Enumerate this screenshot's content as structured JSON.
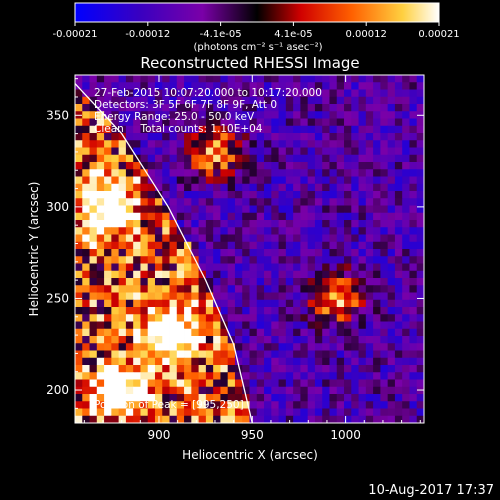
{
  "chart_data": {
    "type": "heatmap",
    "title": "Reconstructed RHESSI Image",
    "xlabel": "Heliocentric X (arcsec)",
    "ylabel": "Heliocentric Y (arcsec)",
    "xlim": [
      855,
      1042
    ],
    "ylim": [
      182,
      372
    ],
    "xticks": [
      900,
      950,
      1000
    ],
    "yticks": [
      200,
      250,
      300,
      350
    ],
    "colorbar": {
      "ticks": [
        "-0.00021",
        "-0.00012",
        "-4.1e-05",
        "4.1e-05",
        "0.00012",
        "0.00021"
      ],
      "unit_label": "(photons cm⁻² s⁻¹ asec⁻²)",
      "range": [
        -0.00021,
        0.00021
      ],
      "colors": [
        "#0000ff",
        "#5000a0",
        "#8000a0",
        "#000000",
        "#ff0000",
        "#ff8000",
        "#ffff80",
        "#ffffff"
      ]
    },
    "annotations": [
      "27-Feb-2015 10:07:20.000 to 10:17:20.000",
      "Detectors: 3F 5F 6F 7F 8F 9F, Att 0",
      "Energy Range: 25.0 - 50.0 keV",
      "Clean     Total counts: 1.10E+04"
    ],
    "peak_label": "Position of Peak = [995,250]",
    "peak": {
      "x": 995,
      "y": 250
    },
    "bright_sources": [
      {
        "x": 995,
        "y": 250
      },
      {
        "x": 872,
        "y": 300
      },
      {
        "x": 905,
        "y": 230
      },
      {
        "x": 930,
        "y": 330
      },
      {
        "x": 880,
        "y": 200
      }
    ],
    "limb": [
      [
        848,
        375
      ],
      [
        880,
        340
      ],
      [
        905,
        300
      ],
      [
        925,
        260
      ],
      [
        940,
        225
      ],
      [
        950,
        182
      ]
    ]
  },
  "footer": {
    "timestamp": "10-Aug-2017 17:37"
  }
}
